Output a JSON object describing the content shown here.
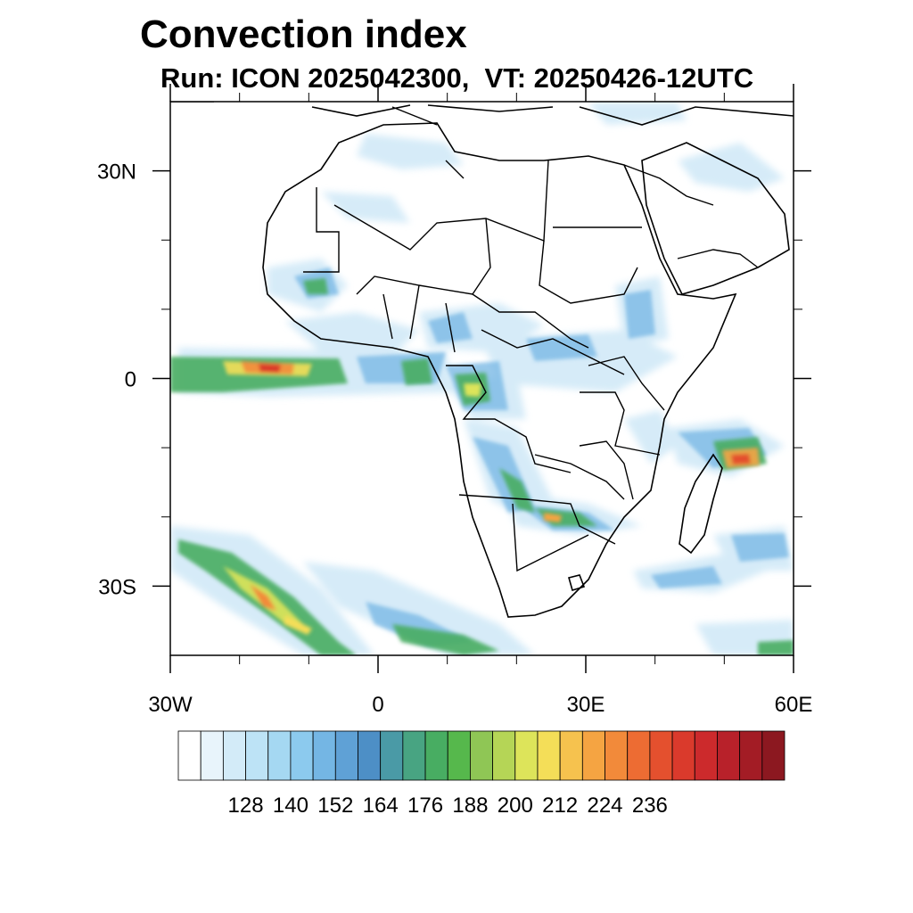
{
  "title": "Convection index",
  "subtitle": "Run: ICON 2025042300,  VT: 20250426-12UTC",
  "map": {
    "extent": {
      "lon": [
        -30,
        60
      ],
      "lat": [
        -40,
        40
      ]
    },
    "lat_ticks": [
      {
        "value": 30,
        "label": "30N"
      },
      {
        "value": 0,
        "label": "0"
      },
      {
        "value": -30,
        "label": "30S"
      }
    ],
    "lon_ticks": [
      {
        "value": -30,
        "label": "30W"
      },
      {
        "value": 0,
        "label": "0"
      },
      {
        "value": 30,
        "label": "30E"
      },
      {
        "value": 60,
        "label": "60E"
      }
    ],
    "minor_lon": [
      -20,
      -10,
      10,
      20,
      40,
      50
    ],
    "minor_lat": [
      20,
      10,
      -10,
      -20
    ]
  },
  "colorbar": {
    "colors": [
      "#ffffff",
      "#e8f4fb",
      "#d3ebf8",
      "#bde3f6",
      "#a5d8f2",
      "#8ccaee",
      "#74b6e4",
      "#5fa1d6",
      "#4d8fc6",
      "#4a9aa6",
      "#48a482",
      "#48ad62",
      "#56b84c",
      "#8fc655",
      "#b5d556",
      "#dde45a",
      "#f4de58",
      "#f6c24e",
      "#f5a442",
      "#f28a3a",
      "#ed6c33",
      "#e4502e",
      "#da3a2c",
      "#cc2a2c",
      "#b8212a",
      "#a31c25",
      "#8c1820"
    ],
    "labels": [
      "128",
      "140",
      "152",
      "164",
      "176",
      "188",
      "200",
      "212",
      "224",
      "236"
    ]
  }
}
